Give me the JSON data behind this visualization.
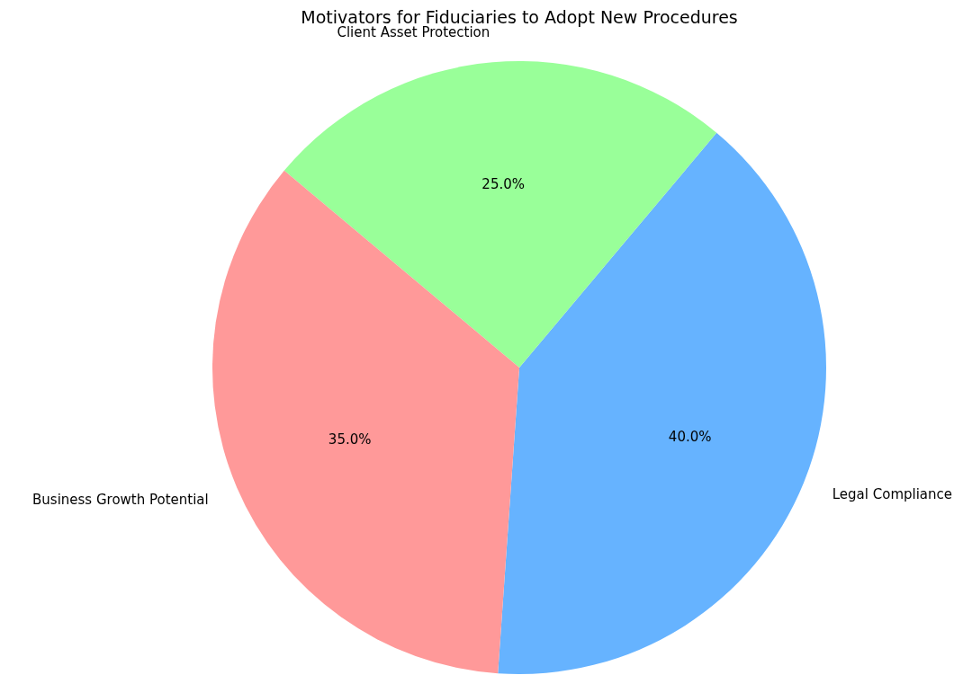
{
  "chart_data": {
    "type": "pie",
    "title": "Motivators for Fiduciaries to Adopt New Procedures",
    "categories": [
      "Legal Compliance",
      "Client Asset Protection",
      "Business Growth Potential"
    ],
    "values": [
      40,
      25,
      35
    ],
    "colors": [
      "#66b3ff",
      "#99ff99",
      "#ff9999"
    ],
    "value_labels": [
      "40.0%",
      "25.0%",
      "35.0%"
    ]
  }
}
